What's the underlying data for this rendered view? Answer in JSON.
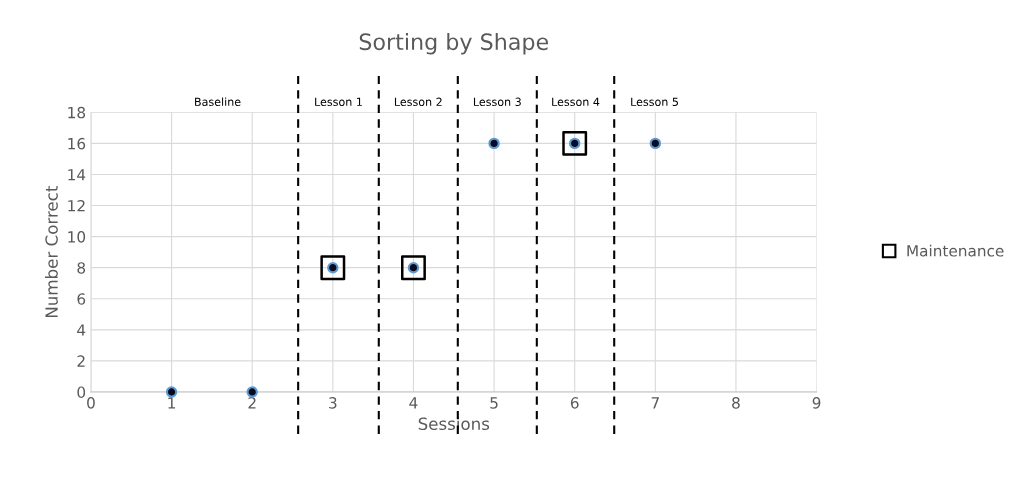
{
  "chart_data": {
    "type": "scatter",
    "title": "Sorting by Shape",
    "xlabel": "Sessions",
    "ylabel": "Number Correct",
    "x": [
      1,
      2,
      3,
      4,
      5,
      6,
      7
    ],
    "series": [
      {
        "color": "#5b9bd5",
        "marker": "circle",
        "values": [
          0,
          0,
          8,
          8,
          16,
          16,
          16
        ]
      },
      {
        "name": "Maintenance",
        "color": "#000000",
        "marker": "square",
        "x": [
          3,
          4,
          6
        ],
        "values": [
          8,
          8,
          16
        ]
      }
    ],
    "xlim": [
      0,
      9
    ],
    "xticks": [
      0,
      1,
      2,
      3,
      4,
      5,
      6,
      7,
      8,
      9
    ],
    "ylim": [
      0,
      18
    ],
    "yticks": [
      0,
      2,
      4,
      6,
      8,
      10,
      12,
      14,
      16,
      18
    ],
    "grid": true,
    "legend": "right",
    "ref_lines": [
      {
        "axis": "x",
        "value": 2.57,
        "line_style": "dashed",
        "color": "#000000"
      },
      {
        "axis": "x",
        "value": 3.57,
        "line_style": "dashed",
        "color": "#000000"
      },
      {
        "axis": "x",
        "value": 4.55,
        "line_style": "dashed",
        "color": "#000000"
      },
      {
        "axis": "x",
        "value": 5.53,
        "line_style": "dashed",
        "color": "#000000"
      },
      {
        "axis": "x",
        "value": 6.49,
        "line_style": "dashed",
        "color": "#000000"
      }
    ],
    "annotations": [
      "Baseline",
      "Lesson 1",
      "Lesson 2",
      "Lesson 3",
      "Lesson 4",
      "Lesson 5"
    ]
  }
}
